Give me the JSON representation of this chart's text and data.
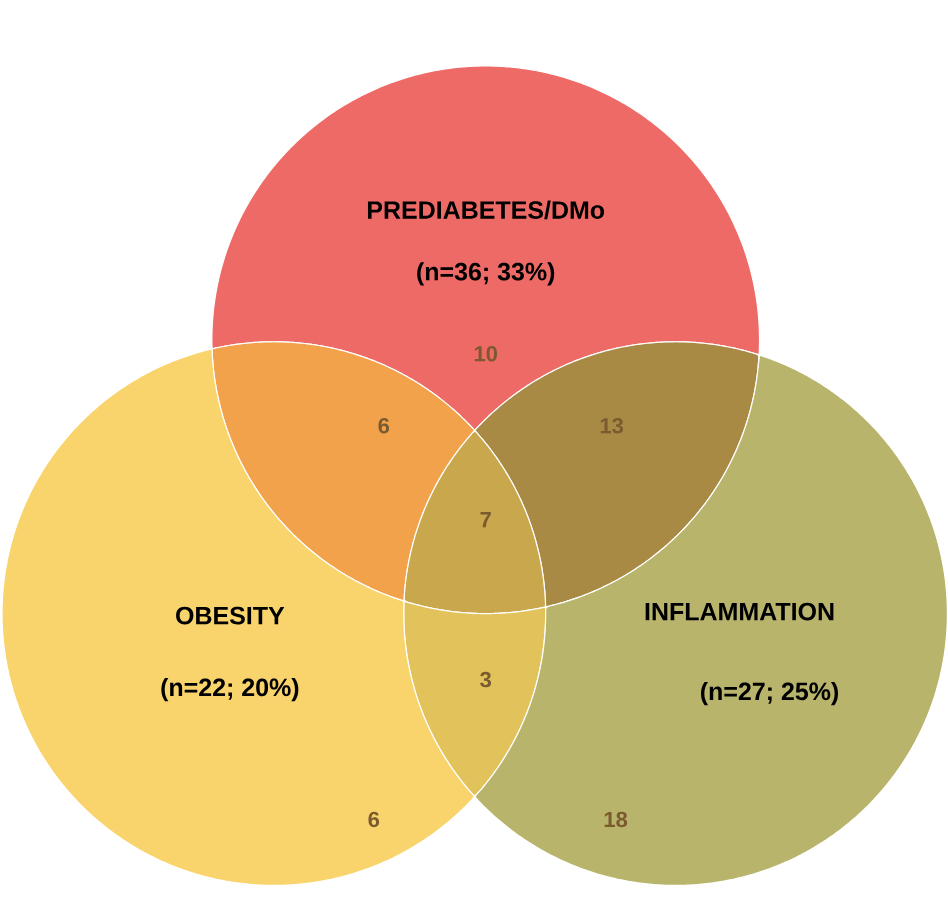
{
  "chart_data": {
    "type": "other",
    "categories": [
      null,
      null,
      null,
      null,
      null,
      null,
      null
    ],
    "values": [
      10,
      6,
      13,
      7,
      3,
      6,
      18
    ],
    "colors": [
      "#ee6a66",
      "#f2a24a",
      "#a98a45",
      "#c9a74c",
      "#e2c25a",
      "#f9d46c",
      "#b8b46b"
    ],
    "data_labels": true,
    "annotations": [
      "PREDIABETES/DMo",
      "(n=36; 33%)",
      "OBESITY",
      "(n=22; 20%)",
      "INFLAMMATION",
      "(n=27; 25%)"
    ]
  }
}
